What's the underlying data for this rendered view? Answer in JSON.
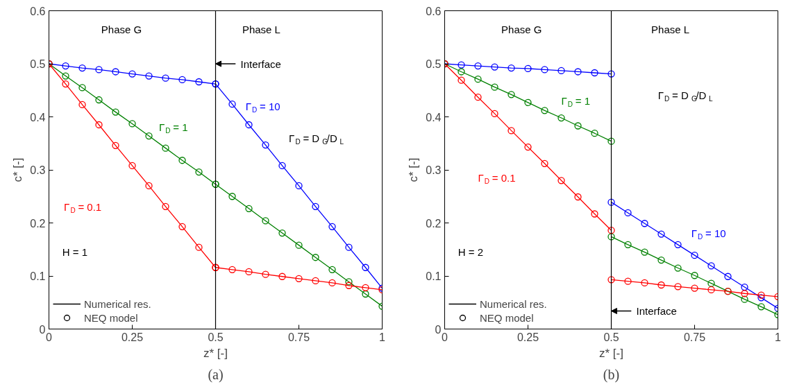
{
  "chart_data": [
    {
      "type": "line",
      "title": "(a)",
      "xlabel": "z* [-]",
      "ylabel": "c* [-]",
      "xlim": [
        0,
        1
      ],
      "ylim": [
        0,
        0.6
      ],
      "xticks": [
        0,
        0.25,
        0.5,
        0.75,
        1
      ],
      "yticks": [
        0,
        0.1,
        0.2,
        0.3,
        0.4,
        0.5,
        0.6
      ],
      "grid": false,
      "legend": "bottom left",
      "marker": "circle",
      "line_style": "solid",
      "ref_lines": [
        {
          "axis": "x",
          "value": 0.5,
          "label": null,
          "color": "#000000"
        }
      ],
      "annotations": [
        "Phase G",
        "Phase L",
        {
          "text": "Interface",
          "x": 0.5,
          "y": 0.5
        },
        "Γ$_{D}$ = 10",
        "Γ$_{D}$ = D$_{G}$/D$_{L}$",
        "Γ$_{D}$ = 1",
        "Γ$_{D}$ = 0.1",
        "H = 1"
      ],
      "series": [
        {
          "color": "#0000ff",
          "x": [
            0,
            0.05,
            0.1,
            0.15,
            0.2,
            0.25,
            0.3,
            0.35,
            0.4,
            0.45,
            0.5
          ],
          "values": [
            0.5,
            0.496,
            0.492,
            0.489,
            0.485,
            0.481,
            0.477,
            0.473,
            0.47,
            0.466,
            0.462
          ]
        },
        {
          "color": "#0000ff",
          "x": [
            0.5,
            0.55,
            0.6,
            0.65,
            0.7,
            0.75,
            0.8,
            0.85,
            0.9,
            0.95,
            1
          ],
          "values": [
            0.462,
            0.424,
            0.385,
            0.347,
            0.308,
            0.27,
            0.231,
            0.193,
            0.154,
            0.116,
            0.077
          ]
        },
        {
          "color": "#008000",
          "x": [
            0,
            0.05,
            0.1,
            0.15,
            0.2,
            0.25,
            0.3,
            0.35,
            0.4,
            0.45,
            0.5
          ],
          "values": [
            0.5,
            0.477,
            0.455,
            0.432,
            0.409,
            0.387,
            0.364,
            0.341,
            0.318,
            0.296,
            0.273
          ]
        },
        {
          "color": "#008000",
          "x": [
            0.5,
            0.55,
            0.6,
            0.65,
            0.7,
            0.75,
            0.8,
            0.85,
            0.9,
            0.95,
            1
          ],
          "values": [
            0.273,
            0.25,
            0.227,
            0.204,
            0.181,
            0.158,
            0.135,
            0.112,
            0.089,
            0.066,
            0.043
          ]
        },
        {
          "color": "#ff0000",
          "x": [
            0,
            0.05,
            0.1,
            0.15,
            0.2,
            0.25,
            0.3,
            0.35,
            0.4,
            0.45,
            0.5
          ],
          "values": [
            0.5,
            0.462,
            0.423,
            0.385,
            0.346,
            0.308,
            0.27,
            0.231,
            0.193,
            0.154,
            0.116
          ]
        },
        {
          "color": "#ff0000",
          "x": [
            0.5,
            0.55,
            0.6,
            0.65,
            0.7,
            0.75,
            0.8,
            0.85,
            0.9,
            0.95,
            1
          ],
          "values": [
            0.116,
            0.112,
            0.108,
            0.103,
            0.099,
            0.095,
            0.091,
            0.087,
            0.082,
            0.078,
            0.074
          ]
        },
        {
          "name": "Numerical res.",
          "type": "line",
          "color": "#000000",
          "values": [
            null
          ]
        },
        {
          "name": "NEQ model",
          "type": "scatter",
          "color": "#000000",
          "values": [
            null
          ]
        }
      ]
    },
    {
      "type": "line",
      "title": "(b)",
      "xlabel": "z* [-]",
      "ylabel": "c* [-]",
      "xlim": [
        0,
        1
      ],
      "ylim": [
        0,
        0.6
      ],
      "xticks": [
        0,
        0.25,
        0.5,
        0.75,
        1
      ],
      "yticks": [
        0,
        0.1,
        0.2,
        0.3,
        0.4,
        0.5,
        0.6
      ],
      "grid": false,
      "legend": "bottom left",
      "marker": "circle",
      "line_style": "solid",
      "ref_lines": [
        {
          "axis": "x",
          "value": 0.5,
          "label": null,
          "color": "#000000"
        }
      ],
      "annotations": [
        "Phase G",
        "Phase L",
        {
          "text": "Interface",
          "x": 0.5,
          "y": 0.034
        },
        "Γ$_{D}$ = D$_{G}$/D$_{L}$",
        "Γ$_{D}$ = 1",
        "Γ$_{D}$ = 0.1",
        "Γ$_{D}$ = 10",
        "H = 2"
      ],
      "series": [
        {
          "color": "#0000ff",
          "x": [
            0,
            0.05,
            0.1,
            0.15,
            0.2,
            0.25,
            0.3,
            0.35,
            0.4,
            0.45,
            0.5
          ],
          "values": [
            0.5,
            0.498,
            0.496,
            0.494,
            0.492,
            0.491,
            0.489,
            0.487,
            0.485,
            0.483,
            0.481
          ]
        },
        {
          "color": "#0000ff",
          "x": [
            0.5,
            0.55,
            0.6,
            0.65,
            0.7,
            0.75,
            0.8,
            0.85,
            0.9,
            0.95,
            1
          ],
          "values": [
            0.239,
            0.219,
            0.199,
            0.179,
            0.159,
            0.139,
            0.119,
            0.099,
            0.079,
            0.059,
            0.039
          ]
        },
        {
          "color": "#008000",
          "x": [
            0,
            0.05,
            0.1,
            0.15,
            0.2,
            0.25,
            0.3,
            0.35,
            0.4,
            0.45,
            0.5
          ],
          "values": [
            0.5,
            0.485,
            0.471,
            0.456,
            0.442,
            0.427,
            0.412,
            0.398,
            0.383,
            0.369,
            0.354
          ]
        },
        {
          "color": "#008000",
          "x": [
            0.5,
            0.55,
            0.6,
            0.65,
            0.7,
            0.75,
            0.8,
            0.85,
            0.9,
            0.95,
            1
          ],
          "values": [
            0.174,
            0.159,
            0.145,
            0.13,
            0.115,
            0.101,
            0.086,
            0.071,
            0.056,
            0.042,
            0.027
          ]
        },
        {
          "color": "#ff0000",
          "x": [
            0,
            0.05,
            0.1,
            0.15,
            0.2,
            0.25,
            0.3,
            0.35,
            0.4,
            0.45,
            0.5
          ],
          "values": [
            0.5,
            0.469,
            0.437,
            0.406,
            0.374,
            0.343,
            0.312,
            0.28,
            0.249,
            0.217,
            0.186
          ]
        },
        {
          "color": "#ff0000",
          "x": [
            0.5,
            0.55,
            0.6,
            0.65,
            0.7,
            0.75,
            0.8,
            0.85,
            0.9,
            0.95,
            1
          ],
          "values": [
            0.093,
            0.09,
            0.087,
            0.083,
            0.08,
            0.077,
            0.074,
            0.071,
            0.067,
            0.064,
            0.061
          ]
        },
        {
          "name": "Numerical res.",
          "type": "line",
          "color": "#000000",
          "values": [
            null
          ]
        },
        {
          "name": "NEQ model",
          "type": "scatter",
          "color": "#000000",
          "values": [
            null
          ]
        }
      ]
    }
  ]
}
